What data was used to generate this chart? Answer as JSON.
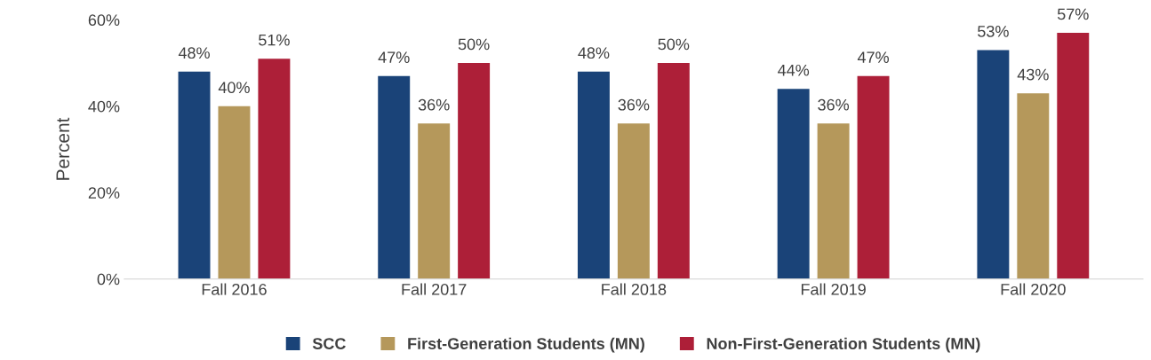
{
  "chart_data": {
    "type": "bar",
    "ylabel": "Percent",
    "categories": [
      "Fall 2016",
      "Fall 2017",
      "Fall 2018",
      "Fall 2019",
      "Fall 2020"
    ],
    "series": [
      {
        "name": "SCC",
        "color": "#1a4378",
        "values": [
          48,
          47,
          48,
          44,
          53
        ],
        "value_labels": [
          "48%",
          "47%",
          "48%",
          "44%",
          "53%"
        ]
      },
      {
        "name": "First-Generation Students (MN)",
        "color": "#b5985b",
        "values": [
          40,
          36,
          36,
          36,
          43
        ],
        "value_labels": [
          "40%",
          "36%",
          "36%",
          "36%",
          "43%"
        ]
      },
      {
        "name": "Non-First-Generation Students (MN)",
        "color": "#ad1f38",
        "values": [
          51,
          50,
          50,
          47,
          57
        ],
        "value_labels": [
          "51%",
          "50%",
          "50%",
          "47%",
          "57%"
        ]
      }
    ],
    "ylim": [
      0,
      60
    ],
    "yticks": [
      {
        "value": 0,
        "label": "0%"
      },
      {
        "value": 20,
        "label": "20%"
      },
      {
        "value": 40,
        "label": "40%"
      },
      {
        "value": 60,
        "label": "60%"
      }
    ],
    "grid": false,
    "legend": "bottom"
  }
}
